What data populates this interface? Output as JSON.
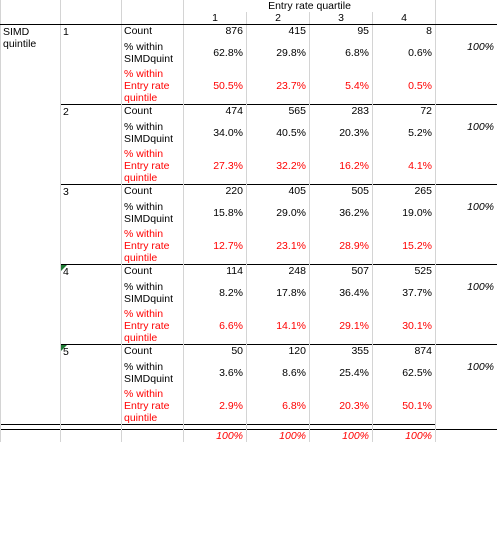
{
  "header": {
    "title": "Entry rate quartile",
    "quartiles": [
      "1",
      "2",
      "3",
      "4"
    ]
  },
  "row_label": "SIMD quintile",
  "measure_labels": {
    "count": "Count",
    "pct_simd": "% within SIMDquint",
    "pct_entry": "% within Entry rate quintile"
  },
  "groups": [
    {
      "quintile": "1",
      "count": [
        "876",
        "415",
        "95",
        "8"
      ],
      "pct_simd": [
        "62.8%",
        "29.8%",
        "6.8%",
        "0.6%"
      ],
      "pct_entry": [
        "50.5%",
        "23.7%",
        "5.4%",
        "0.5%"
      ],
      "row_total": "100%"
    },
    {
      "quintile": "2",
      "count": [
        "474",
        "565",
        "283",
        "72"
      ],
      "pct_simd": [
        "34.0%",
        "40.5%",
        "20.3%",
        "5.2%"
      ],
      "pct_entry": [
        "27.3%",
        "32.2%",
        "16.2%",
        "4.1%"
      ],
      "row_total": "100%"
    },
    {
      "quintile": "3",
      "count": [
        "220",
        "405",
        "505",
        "265"
      ],
      "pct_simd": [
        "15.8%",
        "29.0%",
        "36.2%",
        "19.0%"
      ],
      "pct_entry": [
        "12.7%",
        "23.1%",
        "28.9%",
        "15.2%"
      ],
      "row_total": "100%"
    },
    {
      "quintile": "4",
      "count": [
        "114",
        "248",
        "507",
        "525"
      ],
      "pct_simd": [
        "8.2%",
        "17.8%",
        "36.4%",
        "37.7%"
      ],
      "pct_entry": [
        "6.6%",
        "14.1%",
        "29.1%",
        "30.1%"
      ],
      "row_total": "100%"
    },
    {
      "quintile": "5",
      "count": [
        "50",
        "120",
        "355",
        "874"
      ],
      "pct_simd": [
        "3.6%",
        "8.6%",
        "25.4%",
        "62.5%"
      ],
      "pct_entry": [
        "2.9%",
        "6.8%",
        "20.3%",
        "50.1%"
      ],
      "row_total": "100%"
    }
  ],
  "column_totals": [
    "100%",
    "100%",
    "100%",
    "100%"
  ],
  "colors": {
    "red_text": "#ff0000",
    "comment_marker": "#1e7b34"
  }
}
